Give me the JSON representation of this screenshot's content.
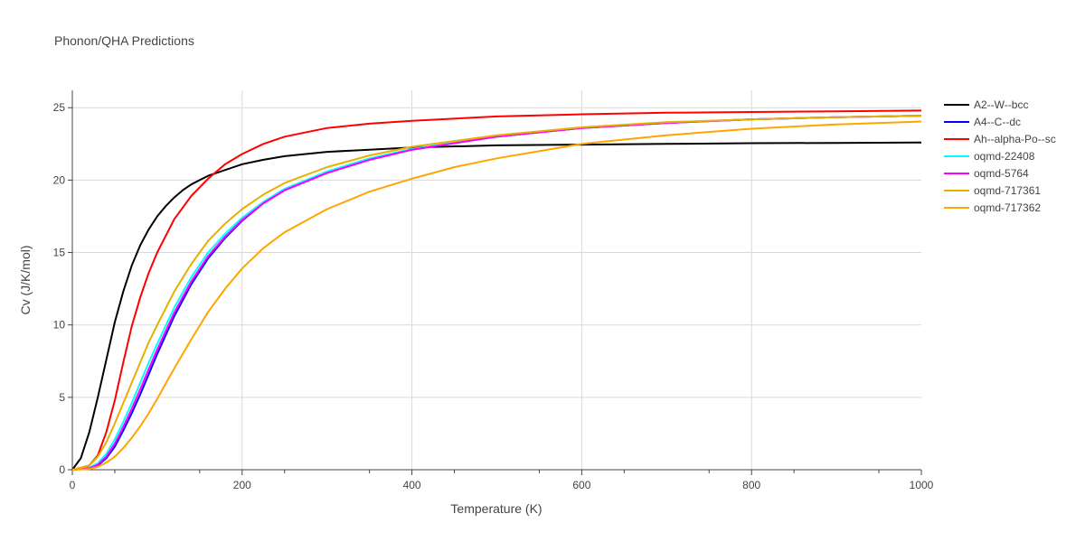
{
  "chart_data": {
    "type": "line",
    "title": "Phonon/QHA Predictions",
    "xlabel": "Temperature (K)",
    "ylabel": "Cv (J/K/mol)",
    "xlim": [
      0,
      1000
    ],
    "ylim": [
      0,
      26.2
    ],
    "xticks": [
      0,
      200,
      400,
      600,
      800,
      1000
    ],
    "yticks": [
      0,
      5,
      10,
      15,
      20,
      25
    ],
    "grid": true,
    "legend_position": "top-right",
    "series": [
      {
        "name": "A2--W--bcc",
        "color": "#000000",
        "x": [
          0,
          10,
          20,
          30,
          40,
          50,
          60,
          70,
          80,
          90,
          100,
          110,
          120,
          130,
          140,
          150,
          160,
          180,
          200,
          225,
          250,
          300,
          350,
          400,
          500,
          600,
          700,
          800,
          900,
          1000
        ],
        "y": [
          0,
          0.8,
          2.6,
          5.0,
          7.6,
          10.2,
          12.3,
          14.1,
          15.5,
          16.6,
          17.5,
          18.2,
          18.8,
          19.3,
          19.7,
          20.0,
          20.3,
          20.7,
          21.1,
          21.4,
          21.65,
          21.95,
          22.1,
          22.25,
          22.4,
          22.45,
          22.5,
          22.55,
          22.57,
          22.6
        ]
      },
      {
        "name": "A4--C--dc",
        "color": "#0000ff",
        "x": [
          0,
          20,
          30,
          40,
          50,
          60,
          70,
          80,
          90,
          100,
          120,
          140,
          160,
          180,
          200,
          225,
          250,
          300,
          350,
          400,
          500,
          600,
          700,
          800,
          900,
          1000
        ],
        "y": [
          0,
          0.1,
          0.3,
          0.8,
          1.6,
          2.7,
          3.9,
          5.2,
          6.6,
          8.0,
          10.6,
          12.8,
          14.6,
          16.0,
          17.2,
          18.4,
          19.3,
          20.5,
          21.4,
          22.1,
          23.0,
          23.6,
          23.95,
          24.2,
          24.35,
          24.45
        ]
      },
      {
        "name": "Ah--alpha-Po--sc",
        "color": "#ff0000",
        "x": [
          0,
          10,
          20,
          30,
          40,
          50,
          60,
          70,
          80,
          90,
          100,
          120,
          140,
          160,
          180,
          200,
          225,
          250,
          300,
          350,
          400,
          500,
          600,
          700,
          800,
          900,
          1000
        ],
        "y": [
          0,
          0.05,
          0.3,
          1.0,
          2.6,
          4.8,
          7.4,
          9.9,
          11.9,
          13.6,
          15.0,
          17.3,
          18.9,
          20.1,
          21.1,
          21.8,
          22.5,
          23.0,
          23.6,
          23.9,
          24.1,
          24.4,
          24.55,
          24.65,
          24.7,
          24.75,
          24.8
        ]
      },
      {
        "name": "oqmd-22408",
        "color": "#00ffff",
        "x": [
          0,
          20,
          30,
          40,
          50,
          60,
          70,
          80,
          90,
          100,
          120,
          140,
          160,
          180,
          200,
          225,
          250,
          300,
          350,
          400,
          500,
          600,
          700,
          800,
          900,
          1000
        ],
        "y": [
          0,
          0.15,
          0.45,
          1.1,
          2.1,
          3.3,
          4.6,
          6.0,
          7.4,
          8.7,
          11.2,
          13.3,
          15.0,
          16.3,
          17.4,
          18.5,
          19.4,
          20.6,
          21.5,
          22.15,
          23.0,
          23.6,
          23.95,
          24.2,
          24.35,
          24.45
        ]
      },
      {
        "name": "oqmd-5764",
        "color": "#ff00ff",
        "x": [
          0,
          20,
          30,
          40,
          50,
          60,
          70,
          80,
          90,
          100,
          120,
          140,
          160,
          180,
          200,
          225,
          250,
          300,
          350,
          400,
          500,
          600,
          700,
          800,
          900,
          1000
        ],
        "y": [
          0,
          0.1,
          0.35,
          0.9,
          1.8,
          2.95,
          4.2,
          5.55,
          6.95,
          8.3,
          10.85,
          13.0,
          14.75,
          16.1,
          17.25,
          18.4,
          19.3,
          20.5,
          21.4,
          22.1,
          23.0,
          23.6,
          23.95,
          24.2,
          24.35,
          24.45
        ]
      },
      {
        "name": "oqmd-717361",
        "color": "#e6b000",
        "x": [
          0,
          20,
          30,
          40,
          50,
          60,
          70,
          80,
          90,
          100,
          120,
          140,
          160,
          180,
          200,
          225,
          250,
          300,
          350,
          400,
          500,
          600,
          700,
          800,
          900,
          1000
        ],
        "y": [
          0,
          0.3,
          0.9,
          1.9,
          3.2,
          4.6,
          6.0,
          7.4,
          8.8,
          10.0,
          12.3,
          14.2,
          15.8,
          17.0,
          18.0,
          19.0,
          19.8,
          20.9,
          21.7,
          22.3,
          23.1,
          23.65,
          24.0,
          24.2,
          24.35,
          24.45
        ]
      },
      {
        "name": "oqmd-717362",
        "color": "#ffa500",
        "x": [
          0,
          20,
          30,
          40,
          50,
          60,
          70,
          80,
          90,
          100,
          120,
          140,
          160,
          180,
          200,
          225,
          250,
          300,
          350,
          400,
          450,
          500,
          600,
          700,
          800,
          900,
          1000
        ],
        "y": [
          0,
          0.05,
          0.2,
          0.5,
          0.9,
          1.5,
          2.2,
          3.0,
          3.9,
          4.9,
          7.0,
          9.0,
          10.9,
          12.5,
          13.9,
          15.3,
          16.4,
          18.0,
          19.2,
          20.1,
          20.9,
          21.5,
          22.5,
          23.1,
          23.55,
          23.85,
          24.05
        ]
      }
    ]
  }
}
